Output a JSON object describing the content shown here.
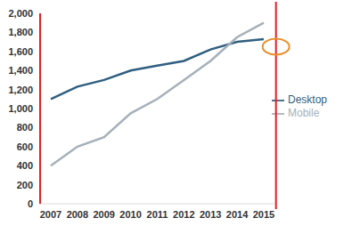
{
  "chart_data": {
    "type": "line",
    "categories": [
      "2007",
      "2008",
      "2009",
      "2010",
      "2011",
      "2012",
      "2013",
      "2014",
      "2015"
    ],
    "series": [
      {
        "name": "Desktop",
        "color": "#2f5f80",
        "values": [
          1100,
          1230,
          1300,
          1400,
          1450,
          1500,
          1620,
          1700,
          1730
        ]
      },
      {
        "name": "Mobile",
        "color": "#a5b0ba",
        "values": [
          400,
          600,
          700,
          950,
          1100,
          1300,
          1500,
          1750,
          1900
        ]
      }
    ],
    "ylim": [
      0,
      2000
    ],
    "yticks": [
      0,
      200,
      400,
      600,
      800,
      {
        "value": 1000,
        "label": "1,000"
      },
      {
        "value": 1200,
        "label": "1,200"
      },
      {
        "value": 1400,
        "label": "1,400"
      },
      {
        "value": 1600,
        "label": "1,600"
      },
      {
        "value": 1800,
        "label": "1,800"
      },
      {
        "value": 2000,
        "label": "2,000"
      }
    ],
    "grid": false,
    "legend": "right"
  }
}
